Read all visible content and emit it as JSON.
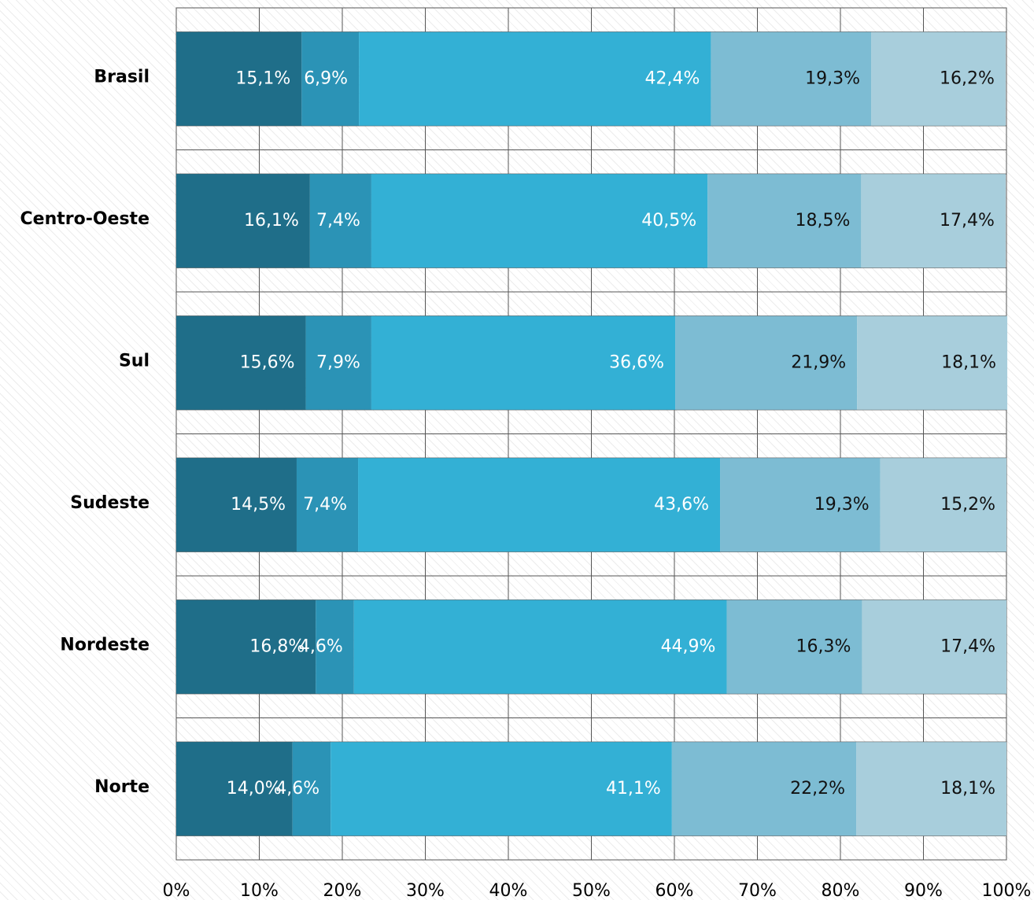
{
  "chart_data": {
    "type": "stacked-barh",
    "categories": [
      "Brasil",
      "Centro-Oeste",
      "Sul",
      "Sudeste",
      "Nordeste",
      "Norte"
    ],
    "series": [
      {
        "color": "#1f6e89",
        "label_color": "#ffffff",
        "values": [
          15.1,
          16.1,
          15.6,
          14.5,
          16.8,
          14.0
        ],
        "value_labels": [
          "15,1%",
          "16,1%",
          "15,6%",
          "14,5%",
          "16,8%",
          "14,0%"
        ]
      },
      {
        "color": "#2b93b6",
        "label_color": "#ffffff",
        "values": [
          6.9,
          7.4,
          7.9,
          7.4,
          4.6,
          4.6
        ],
        "value_labels": [
          "6,9%",
          "7,4%",
          "7,9%",
          "7,4%",
          "4,6%",
          "4,6%"
        ]
      },
      {
        "color": "#33b0d5",
        "label_color": "#ffffff",
        "values": [
          42.4,
          40.5,
          36.6,
          43.6,
          44.9,
          41.1
        ],
        "value_labels": [
          "42,4%",
          "40,5%",
          "36,6%",
          "43,6%",
          "44,9%",
          "41,1%"
        ]
      },
      {
        "color": "#7dbcd3",
        "label_color": "#111111",
        "values": [
          19.3,
          18.5,
          21.9,
          19.3,
          16.3,
          22.2
        ],
        "value_labels": [
          "19,3%",
          "18,5%",
          "21,9%",
          "19,3%",
          "16,3%",
          "22,2%"
        ]
      },
      {
        "color": "#a8cedc",
        "label_color": "#111111",
        "values": [
          16.2,
          17.4,
          18.1,
          15.2,
          17.4,
          18.1
        ],
        "value_labels": [
          "16,2%",
          "17,4%",
          "18,1%",
          "15,2%",
          "17,4%",
          "18,1%"
        ]
      }
    ],
    "xlim": [
      0,
      100
    ],
    "xticks": [
      {
        "value": 0,
        "label": "0%"
      },
      {
        "value": 10,
        "label": "10%"
      },
      {
        "value": 20,
        "label": "20%"
      },
      {
        "value": 30,
        "label": "30%"
      },
      {
        "value": 40,
        "label": "40%"
      },
      {
        "value": 50,
        "label": "50%"
      },
      {
        "value": 60,
        "label": "60%"
      },
      {
        "value": 70,
        "label": "70%"
      },
      {
        "value": 80,
        "label": "80%"
      },
      {
        "value": 90,
        "label": "90%"
      },
      {
        "value": 100,
        "label": "100%"
      }
    ],
    "grid": true
  }
}
